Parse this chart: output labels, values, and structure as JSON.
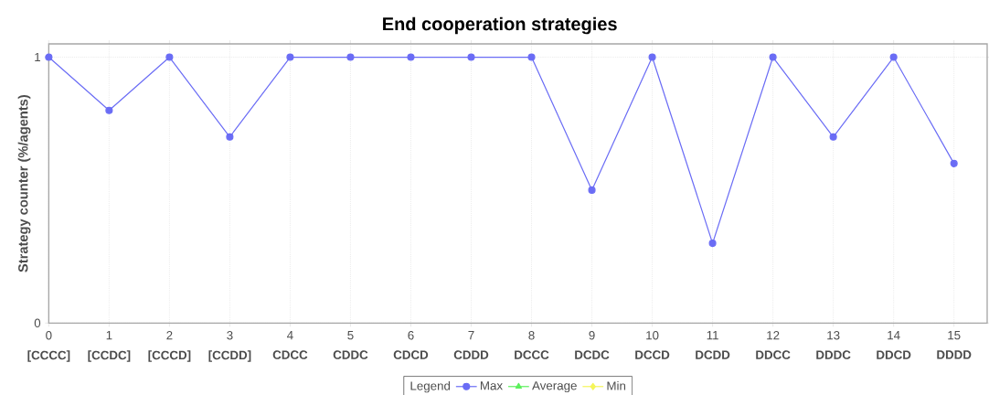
{
  "chart_data": {
    "type": "line",
    "title": "End cooperation strategies",
    "ylabel": "Strategy counter (%/agents)",
    "legend_title": "Legend",
    "annotations": [
      "[CCCC]",
      "[CCDC]",
      "[CCCD]",
      "[CCDD]",
      "CDCC",
      "CDDC",
      "CDCD",
      "CDDD",
      "DCCC",
      "DCDC",
      "DCCD",
      "DCDD",
      "DDCC",
      "DDDC",
      "DDCD",
      "DDDD"
    ],
    "x": [
      0,
      1,
      2,
      3,
      4,
      5,
      6,
      7,
      8,
      9,
      10,
      11,
      12,
      13,
      14,
      15
    ],
    "xlim": [
      0,
      15.55
    ],
    "xticks": [
      0,
      1,
      2,
      3,
      4,
      5,
      6,
      7,
      8,
      9,
      10,
      11,
      12,
      13,
      14,
      15
    ],
    "ylim": [
      0,
      1.05
    ],
    "yticks": [
      0,
      1
    ],
    "series": [
      {
        "name": "Max",
        "color": "#6a6cf5",
        "marker": "circle",
        "values": [
          1,
          0.8,
          1,
          0.7,
          1,
          1,
          1,
          1,
          1,
          0.5,
          1,
          0.3,
          1,
          0.7,
          1,
          0.6
        ]
      },
      {
        "name": "Average",
        "color": "#5cf05c",
        "marker": "triangle",
        "values": [
          null,
          null,
          null,
          null,
          null,
          null,
          null,
          null,
          null,
          null,
          null,
          null,
          null,
          null,
          null,
          null
        ]
      },
      {
        "name": "Min",
        "color": "#f5f55a",
        "marker": "diamond",
        "values": [
          null,
          null,
          null,
          null,
          null,
          null,
          null,
          null,
          null,
          null,
          null,
          null,
          null,
          null,
          null,
          null
        ]
      }
    ],
    "grid": true,
    "legend": "bottom"
  }
}
